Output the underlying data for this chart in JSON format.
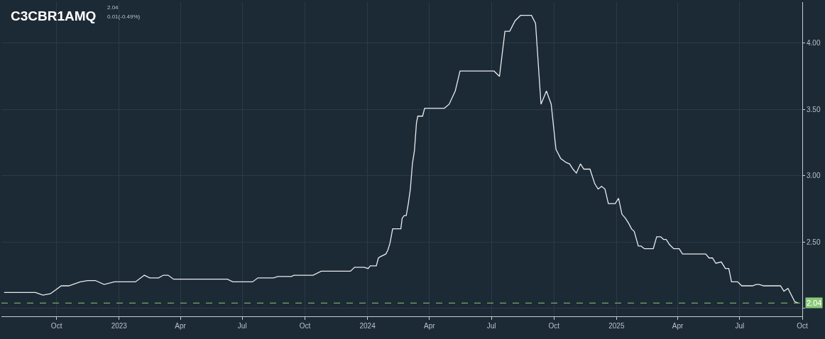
{
  "chart_data": {
    "type": "line",
    "title": "C3CBR1AMQ",
    "subtitle": "2.04",
    "annotations": [
      "0.01(-0.49%)"
    ],
    "x": [
      "2022-07-16",
      "2022-08-31",
      "2022-09-11",
      "2022-09-22",
      "2022-10-08",
      "2022-10-19",
      "2022-11-05",
      "2022-11-16",
      "2022-11-27",
      "2022-12-10",
      "2022-12-25",
      "2023-01-25",
      "2023-02-07",
      "2023-02-15",
      "2023-02-28",
      "2023-03-07",
      "2023-03-14",
      "2023-03-22",
      "2023-06-09",
      "2023-06-17",
      "2023-07-16",
      "2023-07-24",
      "2023-08-16",
      "2023-08-22",
      "2023-09-11",
      "2023-09-15",
      "2023-10-13",
      "2023-10-25",
      "2023-12-07",
      "2023-12-13",
      "2023-12-27",
      "2024-01-02",
      "2024-01-05",
      "2024-01-14",
      "2024-01-17",
      "2024-01-20",
      "2024-01-28",
      "2024-01-31",
      "2024-02-03",
      "2024-02-07",
      "2024-02-19",
      "2024-02-21",
      "2024-02-24",
      "2024-02-27",
      "2024-03-01",
      "2024-03-04",
      "2024-03-07",
      "2024-03-10",
      "2024-03-13",
      "2024-03-15",
      "2024-03-22",
      "2024-03-25",
      "2024-04-23",
      "2024-04-30",
      "2024-05-09",
      "2024-05-16",
      "2024-07-05",
      "2024-07-13",
      "2024-07-21",
      "2024-07-28",
      "2024-08-05",
      "2024-08-13",
      "2024-08-29",
      "2024-09-04",
      "2024-09-12",
      "2024-09-20",
      "2024-09-27",
      "2024-10-04",
      "2024-10-11",
      "2024-10-19",
      "2024-10-24",
      "2024-10-29",
      "2024-11-03",
      "2024-11-09",
      "2024-11-14",
      "2024-11-23",
      "2024-11-30",
      "2024-12-05",
      "2024-12-10",
      "2024-12-15",
      "2024-12-20",
      "2024-12-30",
      "2025-01-04",
      "2025-01-09",
      "2025-01-14",
      "2025-01-19",
      "2025-01-23",
      "2025-01-27",
      "2025-02-02",
      "2025-02-06",
      "2025-02-11",
      "2025-02-24",
      "2025-03-01",
      "2025-03-07",
      "2025-03-11",
      "2025-03-15",
      "2025-03-20",
      "2025-03-26",
      "2025-04-03",
      "2025-04-08",
      "2025-05-12",
      "2025-05-17",
      "2025-05-22",
      "2025-05-27",
      "2025-06-04",
      "2025-06-10",
      "2025-06-15",
      "2025-06-19",
      "2025-06-28",
      "2025-07-04",
      "2025-07-20",
      "2025-07-25",
      "2025-07-30",
      "2025-08-05",
      "2025-08-30",
      "2025-09-04",
      "2025-09-10",
      "2025-09-20",
      "2025-09-25"
    ],
    "series": [
      {
        "color": "#e8ecef",
        "values": [
          2.12,
          2.12,
          2.1,
          2.11,
          2.17,
          2.17,
          2.2,
          2.21,
          2.21,
          2.18,
          2.2,
          2.2,
          2.25,
          2.23,
          2.23,
          2.25,
          2.25,
          2.22,
          2.22,
          2.2,
          2.2,
          2.23,
          2.23,
          2.24,
          2.24,
          2.25,
          2.25,
          2.28,
          2.28,
          2.31,
          2.31,
          2.3,
          2.32,
          2.32,
          2.38,
          2.39,
          2.41,
          2.44,
          2.49,
          2.6,
          2.6,
          2.68,
          2.7,
          2.7,
          2.79,
          2.9,
          3.09,
          3.19,
          3.4,
          3.45,
          3.45,
          3.51,
          3.51,
          3.54,
          3.64,
          3.79,
          3.79,
          3.75,
          4.09,
          4.09,
          4.17,
          4.21,
          4.21,
          4.15,
          3.54,
          3.64,
          3.54,
          3.2,
          3.13,
          3.1,
          3.09,
          3.05,
          3.02,
          3.09,
          3.05,
          3.05,
          2.94,
          2.9,
          2.92,
          2.9,
          2.79,
          2.79,
          2.83,
          2.71,
          2.68,
          2.64,
          2.6,
          2.58,
          2.47,
          2.47,
          2.45,
          2.45,
          2.54,
          2.54,
          2.52,
          2.52,
          2.48,
          2.45,
          2.45,
          2.41,
          2.41,
          2.38,
          2.38,
          2.34,
          2.35,
          2.3,
          2.3,
          2.2,
          2.2,
          2.17,
          2.17,
          2.18,
          2.18,
          2.17,
          2.17,
          2.13,
          2.15,
          2.05,
          2.04
        ]
      }
    ],
    "xlim": [
      "2022-07-12",
      "2025-10-01"
    ],
    "xticks": [
      {
        "value": "2022-10-01",
        "label": "Oct"
      },
      {
        "value": "2023-01-01",
        "label": "2023"
      },
      {
        "value": "2023-04-01",
        "label": "Apr"
      },
      {
        "value": "2023-07-01",
        "label": "Jul"
      },
      {
        "value": "2023-10-01",
        "label": "Oct"
      },
      {
        "value": "2024-01-01",
        "label": "2024"
      },
      {
        "value": "2024-04-01",
        "label": "Apr"
      },
      {
        "value": "2024-07-01",
        "label": "Jul"
      },
      {
        "value": "2024-10-01",
        "label": "Oct"
      },
      {
        "value": "2025-01-01",
        "label": "2025"
      },
      {
        "value": "2025-04-01",
        "label": "Apr"
      },
      {
        "value": "2025-07-01",
        "label": "Jul"
      },
      {
        "value": "2025-10-01",
        "label": "Oct"
      }
    ],
    "ylim": [
      1.94,
      4.31
    ],
    "yticks": [
      {
        "value": 2.0,
        "label": null
      },
      {
        "value": 2.5,
        "label": "2.50"
      },
      {
        "value": 3.0,
        "label": "3.00"
      },
      {
        "value": 3.5,
        "label": "3.50"
      },
      {
        "value": 4.0,
        "label": "4.00"
      }
    ],
    "ref_lines": [
      {
        "axis": "y",
        "value": 2.04,
        "label": "2.04",
        "color": "#8bc97a",
        "line_style": "dashed"
      }
    ],
    "grid": true,
    "marker": "none",
    "line_style": "solid"
  }
}
